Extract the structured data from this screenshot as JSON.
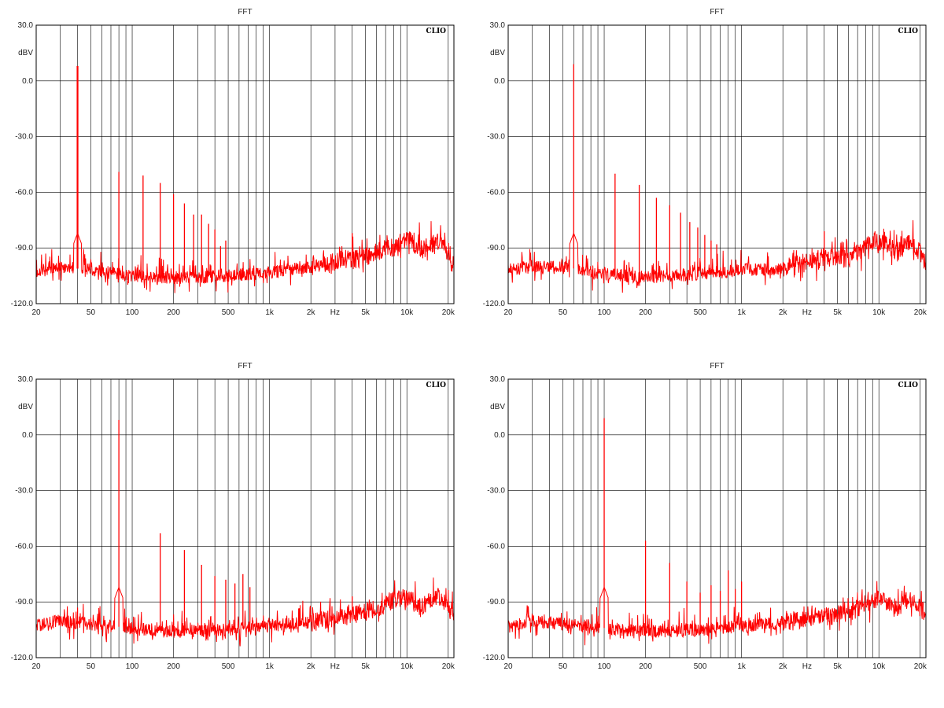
{
  "colors": {
    "trace": "#ff0000",
    "grid": "#000000",
    "frame": "#000000",
    "background": "#ffffff"
  },
  "chart_data": [
    {
      "type": "line",
      "title": "FFT",
      "badge": "CLIO",
      "ylabel": "dBV",
      "xlabel": "Hz",
      "xscale": "log",
      "xlim": [
        20,
        22000
      ],
      "ylim": [
        -120,
        30
      ],
      "yticks": [
        "30.0",
        "0.0",
        "-30.0",
        "-60.0",
        "-90.0",
        "-120.0"
      ],
      "xticks": [
        "20",
        "50",
        "100",
        "200",
        "500",
        "1k",
        "2k",
        "5k",
        "10k",
        "20k"
      ],
      "grid": true,
      "fundamental_hz": 40,
      "series": [
        {
          "peaks": [
            [
              40,
              8
            ],
            [
              80,
              -49
            ],
            [
              120,
              -51
            ],
            [
              160,
              -55
            ],
            [
              200,
              -61
            ],
            [
              240,
              -66
            ],
            [
              280,
              -72
            ],
            [
              320,
              -72
            ],
            [
              360,
              -77
            ],
            [
              400,
              -80
            ],
            [
              440,
              -89
            ],
            [
              480,
              -86
            ],
            [
              4000,
              -82
            ]
          ],
          "floor": [
            [
              20,
              -103
            ],
            [
              30,
              -100
            ],
            [
              50,
              -102
            ],
            [
              100,
              -105
            ],
            [
              200,
              -106
            ],
            [
              500,
              -105
            ],
            [
              1000,
              -103
            ],
            [
              2000,
              -100
            ],
            [
              3500,
              -96
            ],
            [
              5000,
              -95
            ],
            [
              7000,
              -90
            ],
            [
              8500,
              -90
            ],
            [
              10000,
              -85
            ],
            [
              13000,
              -91
            ],
            [
              17000,
              -86
            ],
            [
              20000,
              -93
            ],
            [
              22000,
              -102
            ]
          ]
        }
      ]
    },
    {
      "type": "line",
      "title": "FFT",
      "badge": "CLIO",
      "ylabel": "dBV",
      "xlabel": "Hz",
      "xscale": "log",
      "xlim": [
        20,
        22000
      ],
      "ylim": [
        -120,
        30
      ],
      "yticks": [
        "30.0",
        "0.0",
        "-30.0",
        "-60.0",
        "-90.0",
        "-120.0"
      ],
      "xticks": [
        "20",
        "50",
        "100",
        "200",
        "500",
        "1k",
        "2k",
        "5k",
        "10k",
        "20k"
      ],
      "grid": true,
      "fundamental_hz": 60,
      "series": [
        {
          "peaks": [
            [
              60,
              9
            ],
            [
              120,
              -50
            ],
            [
              180,
              -56
            ],
            [
              240,
              -63
            ],
            [
              300,
              -67
            ],
            [
              360,
              -71
            ],
            [
              420,
              -76
            ],
            [
              480,
              -79
            ],
            [
              540,
              -83
            ],
            [
              600,
              -86
            ],
            [
              660,
              -88
            ],
            [
              4000,
              -81
            ]
          ],
          "floor": [
            [
              20,
              -102
            ],
            [
              30,
              -100
            ],
            [
              50,
              -100
            ],
            [
              100,
              -104
            ],
            [
              200,
              -106
            ],
            [
              500,
              -104
            ],
            [
              1000,
              -102
            ],
            [
              2000,
              -101
            ],
            [
              4000,
              -95
            ],
            [
              6000,
              -96
            ],
            [
              7500,
              -92
            ],
            [
              9000,
              -86
            ],
            [
              11000,
              -88
            ],
            [
              14000,
              -92
            ],
            [
              17000,
              -85
            ],
            [
              20000,
              -93
            ],
            [
              22000,
              -100
            ]
          ]
        }
      ]
    },
    {
      "type": "line",
      "title": "FFT",
      "badge": "CLIO",
      "ylabel": "dBV",
      "xlabel": "Hz",
      "xscale": "log",
      "xlim": [
        20,
        22000
      ],
      "ylim": [
        -120,
        30
      ],
      "yticks": [
        "30.0",
        "0.0",
        "-30.0",
        "-60.0",
        "-90.0",
        "-120.0"
      ],
      "xticks": [
        "20",
        "50",
        "100",
        "200",
        "500",
        "1k",
        "2k",
        "5k",
        "10k",
        "20k"
      ],
      "grid": true,
      "fundamental_hz": 80,
      "series": [
        {
          "peaks": [
            [
              40,
              -93
            ],
            [
              80,
              8
            ],
            [
              160,
              -53
            ],
            [
              240,
              -62
            ],
            [
              320,
              -70
            ],
            [
              400,
              -76
            ],
            [
              480,
              -78
            ],
            [
              560,
              -80
            ],
            [
              640,
              -75
            ],
            [
              720,
              -82
            ],
            [
              4000,
              -87
            ]
          ],
          "floor": [
            [
              20,
              -103
            ],
            [
              30,
              -100
            ],
            [
              50,
              -102
            ],
            [
              100,
              -104
            ],
            [
              200,
              -106
            ],
            [
              500,
              -105
            ],
            [
              1000,
              -103
            ],
            [
              2000,
              -101
            ],
            [
              4000,
              -97
            ],
            [
              6000,
              -94
            ],
            [
              7500,
              -90
            ],
            [
              9000,
              -87
            ],
            [
              10500,
              -89
            ],
            [
              13000,
              -92
            ],
            [
              17000,
              -87
            ],
            [
              20000,
              -93
            ],
            [
              22000,
              -95
            ]
          ]
        }
      ]
    },
    {
      "type": "line",
      "title": "FFT",
      "badge": "CLIO",
      "ylabel": "dBV",
      "xlabel": "Hz",
      "xscale": "log",
      "xlim": [
        20,
        22000
      ],
      "ylim": [
        -120,
        30
      ],
      "yticks": [
        "30.0",
        "0.0",
        "-30.0",
        "-60.0",
        "-90.0",
        "-120.0"
      ],
      "xticks": [
        "20",
        "50",
        "100",
        "200",
        "500",
        "1k",
        "2k",
        "5k",
        "10k",
        "20k"
      ],
      "grid": true,
      "fundamental_hz": 100,
      "series": [
        {
          "peaks": [
            [
              100,
              9
            ],
            [
              200,
              -57
            ],
            [
              300,
              -69
            ],
            [
              400,
              -79
            ],
            [
              500,
              -85
            ],
            [
              600,
              -81
            ],
            [
              700,
              -84
            ],
            [
              800,
              -73
            ],
            [
              900,
              -83
            ],
            [
              1000,
              -79
            ]
          ],
          "floor": [
            [
              20,
              -103
            ],
            [
              30,
              -100
            ],
            [
              50,
              -102
            ],
            [
              100,
              -104
            ],
            [
              200,
              -106
            ],
            [
              500,
              -105
            ],
            [
              1000,
              -103
            ],
            [
              2000,
              -101
            ],
            [
              4000,
              -98
            ],
            [
              6000,
              -96
            ],
            [
              8000,
              -91
            ],
            [
              10000,
              -88
            ],
            [
              13000,
              -94
            ],
            [
              17000,
              -88
            ],
            [
              20000,
              -93
            ],
            [
              22000,
              -96
            ]
          ]
        }
      ]
    }
  ]
}
